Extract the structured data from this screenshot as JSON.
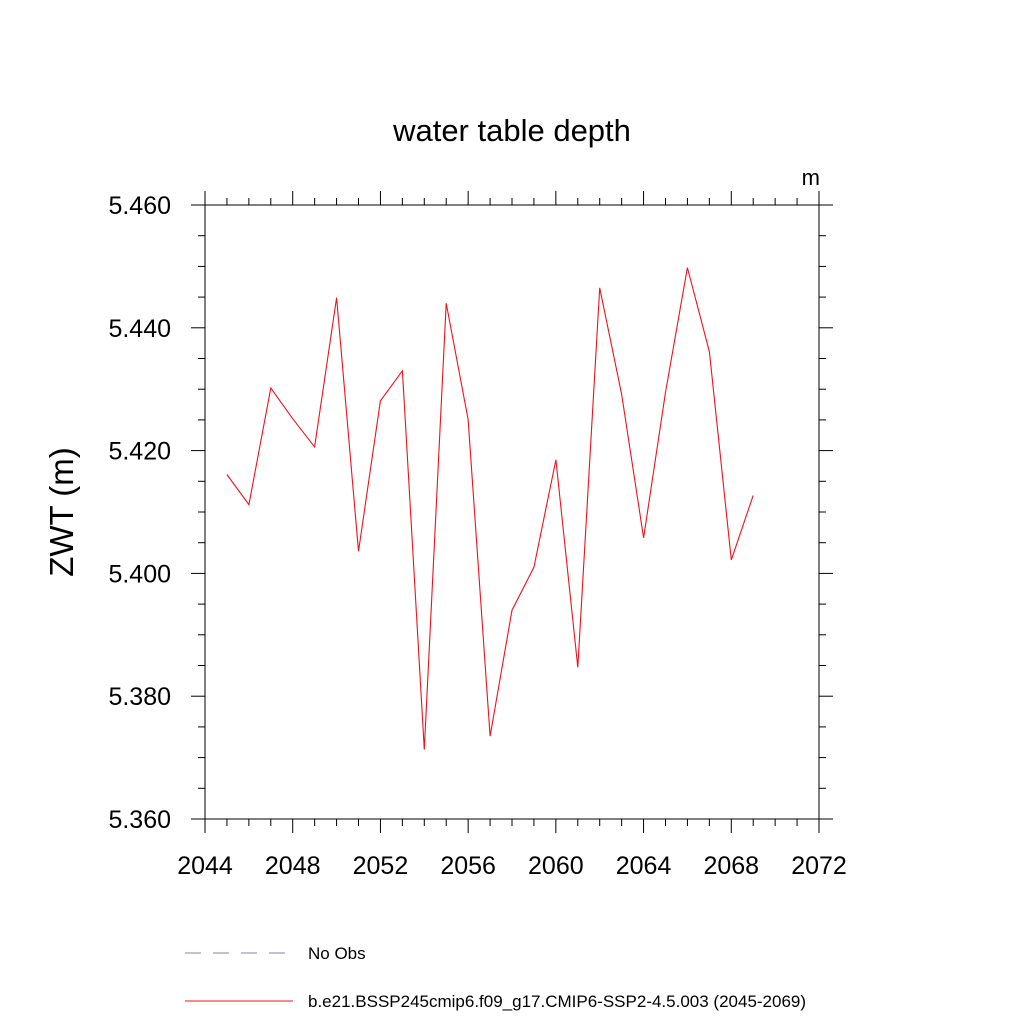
{
  "chart_data": {
    "type": "line",
    "title": "water table depth",
    "units": "m",
    "xlabel": "",
    "ylabel": "ZWT  (m)",
    "xlim": [
      2044,
      2072
    ],
    "ylim": [
      5.36,
      5.46
    ],
    "x_ticks": [
      "2044",
      "2048",
      "2052",
      "2056",
      "2060",
      "2064",
      "2068",
      "2072"
    ],
    "y_ticks": [
      "5.360",
      "5.380",
      "5.400",
      "5.420",
      "5.440",
      "5.460"
    ],
    "series": [
      {
        "name": "b.e21.BSSP245cmip6.f09_g17.CMIP6-SSP2-4.5.003 (2045-2069)",
        "color": "#e8141e",
        "style": "solid",
        "x": [
          2045,
          2046,
          2047,
          2048,
          2049,
          2050,
          2051,
          2052,
          2053,
          2054,
          2055,
          2056,
          2057,
          2058,
          2059,
          2060,
          2061,
          2062,
          2063,
          2064,
          2065,
          2066,
          2067,
          2068,
          2069
        ],
        "values": [
          5.4161,
          5.4112,
          5.4302,
          5.4252,
          5.4206,
          5.4449,
          5.4036,
          5.4281,
          5.433,
          5.3713,
          5.444,
          5.4251,
          5.3735,
          5.394,
          5.401,
          5.4185,
          5.3847,
          5.4465,
          5.4292,
          5.4058,
          5.4295,
          5.4498,
          5.4361,
          5.4022,
          5.4127
        ]
      }
    ],
    "legend": [
      {
        "label": "No Obs",
        "color": "#8080c0",
        "style": "dashed"
      },
      {
        "label": "b.e21.BSSP245cmip6.f09_g17.CMIP6-SSP2-4.5.003 (2045-2069)",
        "color": "#e8141e",
        "style": "solid"
      }
    ]
  }
}
